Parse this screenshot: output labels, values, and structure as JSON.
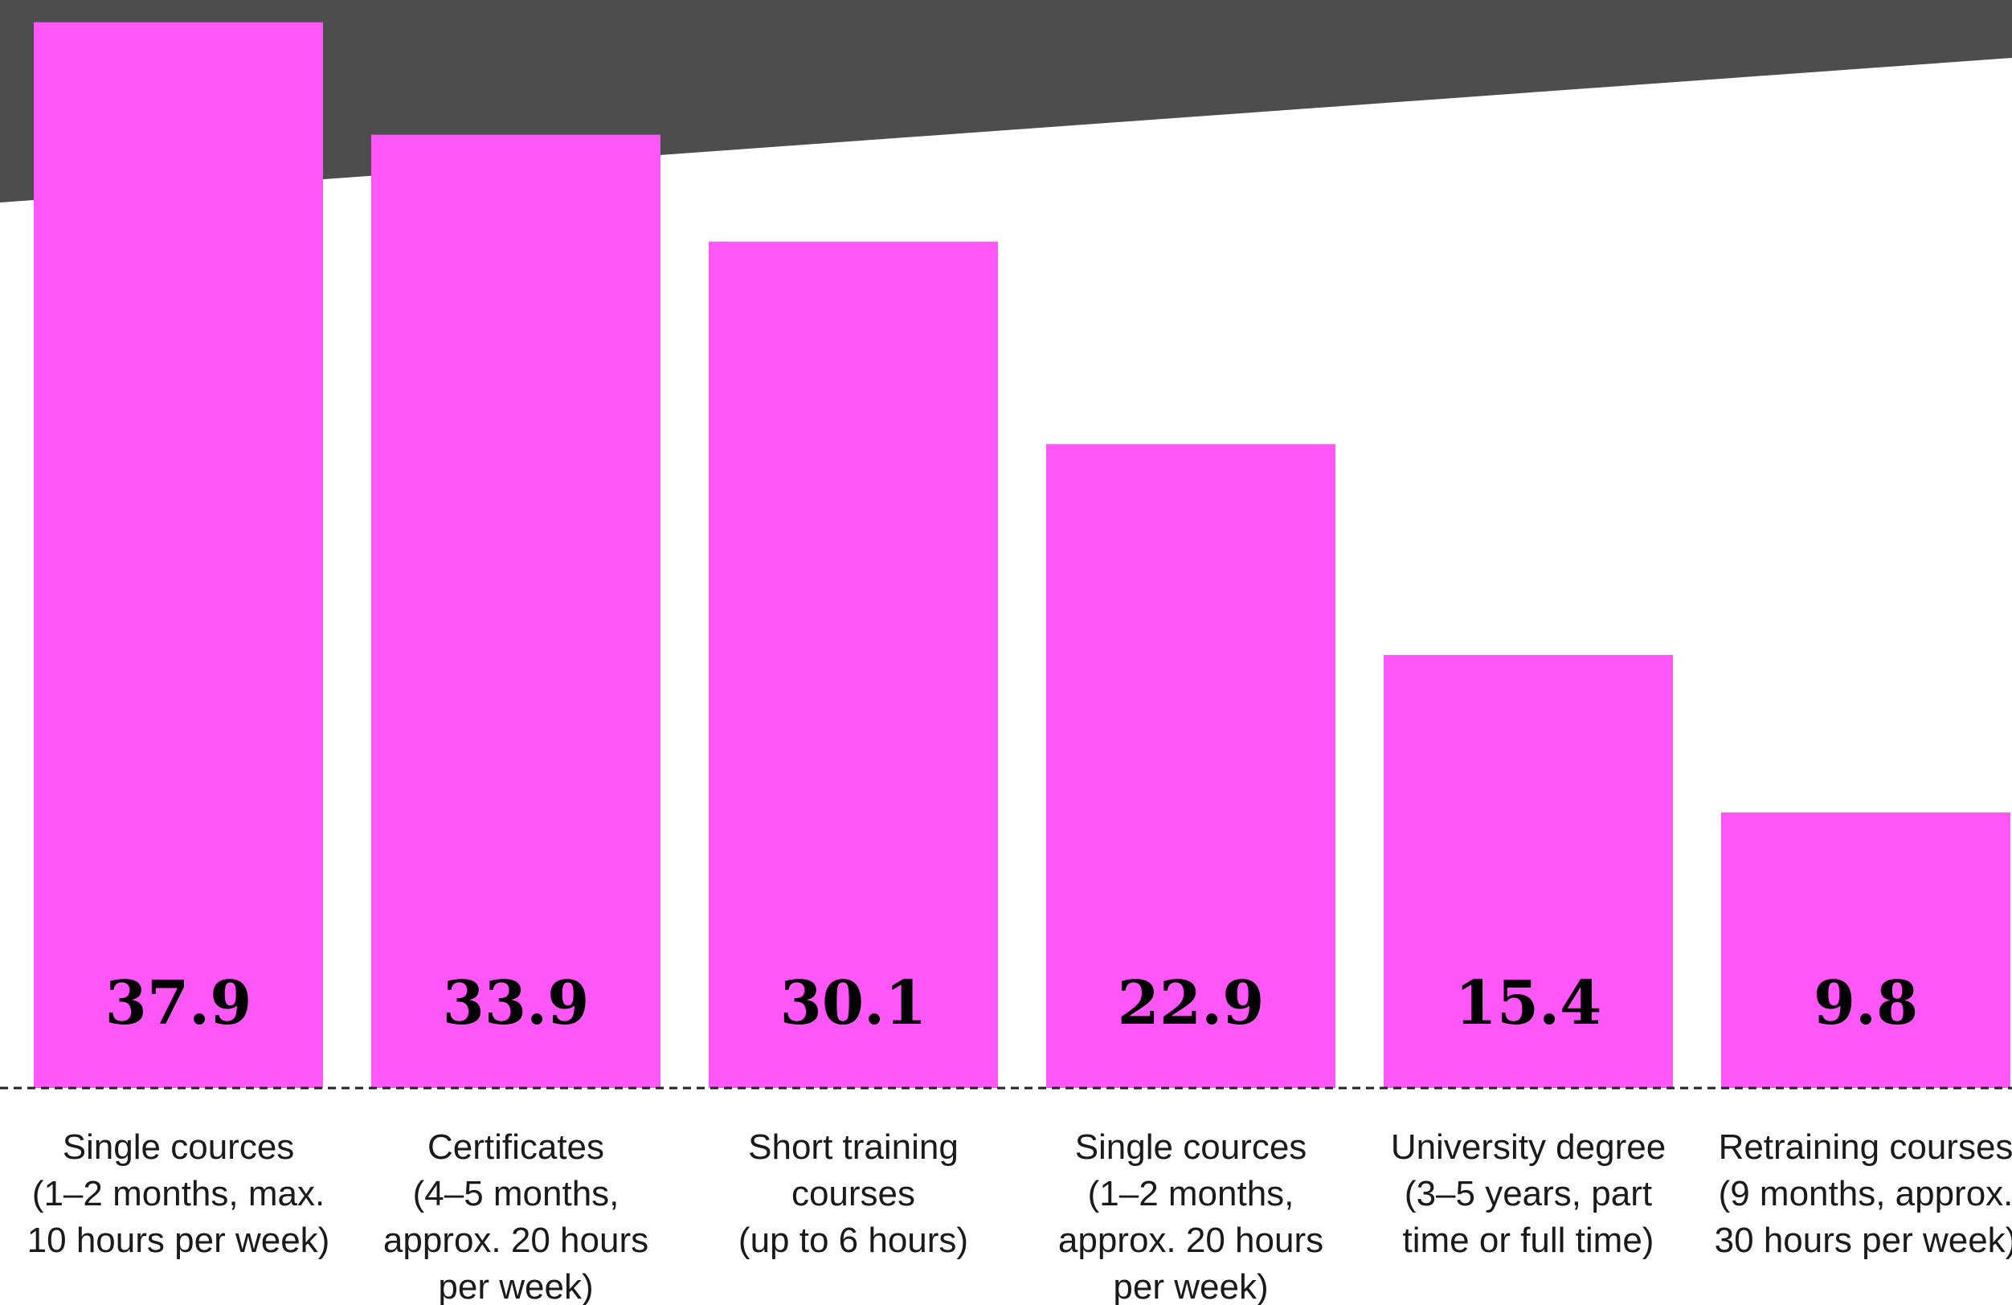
{
  "colors": {
    "bar": "#ff57f7",
    "banner": "#4d4d4d",
    "baseline": "#222222",
    "value_text": "#000000",
    "label_text": "#1a1a1a",
    "background": "#ffffff"
  },
  "chart_data": {
    "type": "bar",
    "title": "",
    "xlabel": "",
    "ylabel": "",
    "ylim": [
      0,
      40
    ],
    "grid": false,
    "legend": "none",
    "categories": [
      [
        "Single cources",
        "(1–2 months, max.",
        "10 hours per week)"
      ],
      [
        "Certificates",
        "(4–5 months,",
        "approx. 20 hours",
        "per week)"
      ],
      [
        "Short training",
        "courses",
        "(up to 6 hours)"
      ],
      [
        "Single cources",
        "(1–2 months,",
        "approx. 20 hours",
        "per week)"
      ],
      [
        "University degree",
        "(3–5 years, part",
        "time or full time)"
      ],
      [
        "Retraining courses",
        "(9 months, approx.",
        "30 hours per week)"
      ]
    ],
    "values": [
      37.9,
      33.9,
      30.1,
      22.9,
      15.4,
      9.8
    ]
  }
}
